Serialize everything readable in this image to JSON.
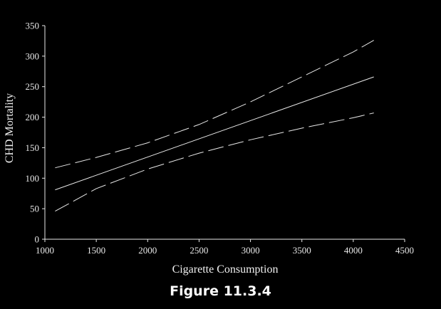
{
  "caption": "Figure 11.3.4",
  "chart_data": {
    "type": "line",
    "xlabel": "Cigarette Consumption",
    "ylabel": "CHD Mortality",
    "xlim": [
      1000,
      4500
    ],
    "ylim": [
      0,
      350
    ],
    "xticks": [
      1000,
      1500,
      2000,
      2500,
      3000,
      3500,
      4000,
      4500
    ],
    "yticks": [
      0,
      50,
      100,
      150,
      200,
      250,
      300,
      350
    ],
    "grid": false,
    "legend": "none",
    "line_color": "#e8e8e8",
    "series": [
      {
        "style": "solid",
        "x": [
          1100,
          4200
        ],
        "y": [
          81,
          266
        ]
      },
      {
        "style": "dashed",
        "x": [
          1100,
          1500,
          2000,
          2500,
          3000,
          3500,
          4000,
          4200
        ],
        "y": [
          117,
          134,
          158,
          188,
          225,
          266,
          307,
          326
        ]
      },
      {
        "style": "dashed",
        "x": [
          1100,
          1500,
          2000,
          2500,
          3000,
          3500,
          4000,
          4200
        ],
        "y": [
          46,
          83,
          115,
          141,
          163,
          182,
          199,
          207
        ]
      }
    ]
  }
}
